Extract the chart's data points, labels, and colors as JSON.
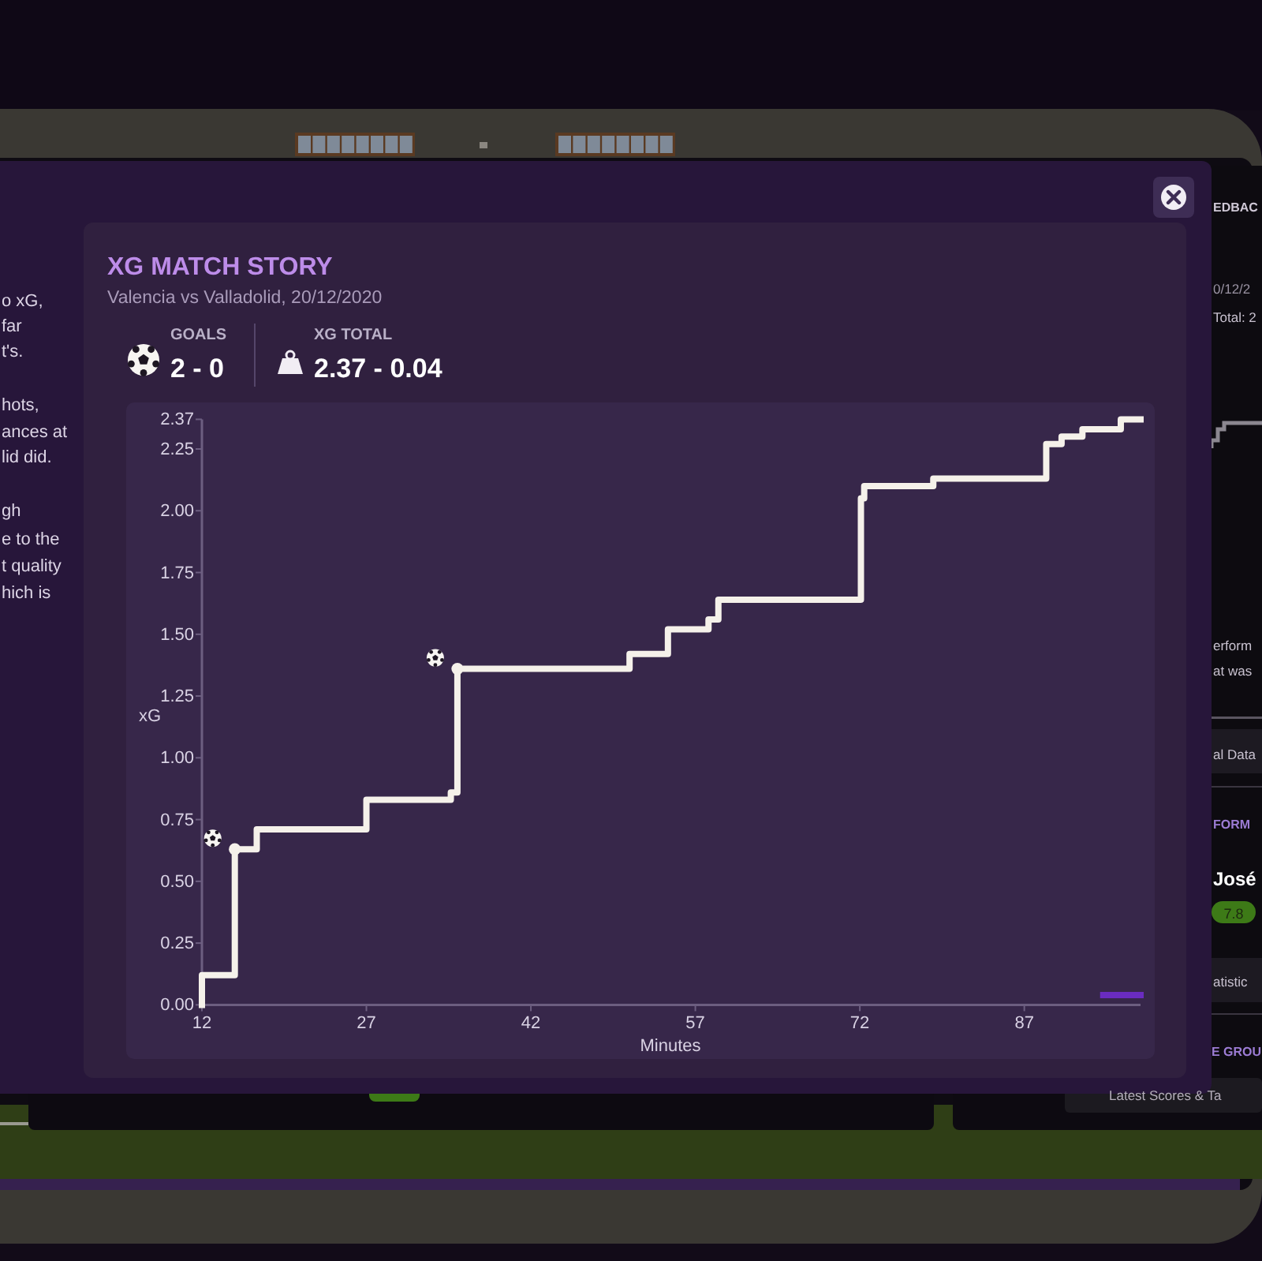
{
  "chart_data": {
    "type": "step",
    "title": "XG MATCH STORY",
    "subtitle": "Valencia vs Valladolid, 20/12/2020",
    "xlabel": "Minutes",
    "ylabel": "xG",
    "xlim": [
      12,
      97.6
    ],
    "xticks": [
      12,
      27,
      42,
      57,
      72,
      87
    ],
    "ylim": [
      0,
      2.37
    ],
    "yticks": [
      {
        "value": 0,
        "label": "0.00"
      },
      {
        "value": 0.25,
        "label": "0.25"
      },
      {
        "value": 0.5,
        "label": "0.50"
      },
      {
        "value": 0.75,
        "label": "0.75"
      },
      {
        "value": 1,
        "label": "1.00"
      },
      {
        "value": 1.25,
        "label": "1.25"
      },
      {
        "value": 1.5,
        "label": "1.50"
      },
      {
        "value": 1.75,
        "label": "1.75"
      },
      {
        "value": 2,
        "label": "2.00"
      },
      {
        "value": 2.25,
        "label": "2.25"
      },
      2.37
    ],
    "series": [
      {
        "color": "#f5f1ea",
        "x": [
          12,
          12,
          15,
          17,
          27,
          34.7,
          35.3,
          51,
          54.5,
          58.2,
          59.1,
          72.1,
          72.4,
          78.7,
          89,
          90.4,
          92.3,
          95.8,
          97.6
        ],
        "values": [
          0,
          0.12,
          0.63,
          0.71,
          0.83,
          0.86,
          1.36,
          1.42,
          1.52,
          1.56,
          1.64,
          2.05,
          2.1,
          2.13,
          2.27,
          2.3,
          2.33,
          2.37,
          2.37
        ]
      },
      {
        "color": "#6a2cc0",
        "x": [
          94.2,
          97.6
        ],
        "values": [
          0.04,
          0.04
        ]
      },
      {
        "type": "scatter",
        "marker": "circle",
        "color": "#f5f1ea",
        "x": [
          15,
          35.3
        ],
        "values": [
          0.63,
          1.36
        ]
      }
    ],
    "annotations": [
      "GOALS",
      "2 - 0",
      "XG TOTAL",
      "2.37 - 0.04",
      "o xG,",
      "far",
      "t's.",
      "hots,",
      "ances at",
      "lid did.",
      "gh",
      "e to the",
      "t quality",
      "hich is",
      "EDBAC",
      "0/12/2",
      "Total: 2",
      "erform",
      "at was",
      "al Data",
      "FORM",
      "José",
      "7.8",
      "atistic",
      "E GROU",
      "Latest Scores & Ta"
    ]
  }
}
